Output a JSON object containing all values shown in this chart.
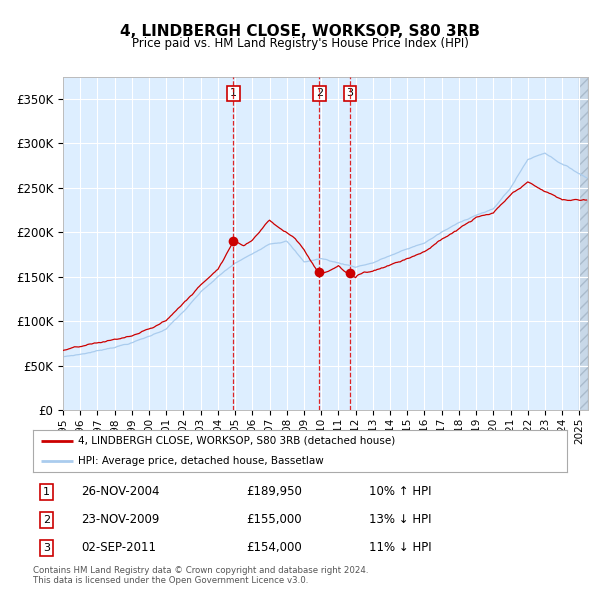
{
  "title": "4, LINDBERGH CLOSE, WORKSOP, S80 3RB",
  "subtitle": "Price paid vs. HM Land Registry's House Price Index (HPI)",
  "line1_label": "4, LINDBERGH CLOSE, WORKSOP, S80 3RB (detached house)",
  "line2_label": "HPI: Average price, detached house, Bassetlaw",
  "line1_color": "#cc0000",
  "line2_color": "#aaccee",
  "bg_color": "#ddeeff",
  "grid_color": "#ffffff",
  "transactions": [
    {
      "num": 1,
      "date": "26-NOV-2004",
      "price": 189950,
      "pct": "10%",
      "dir": "↑",
      "year_x": 2004.9
    },
    {
      "num": 2,
      "date": "23-NOV-2009",
      "price": 155000,
      "pct": "13%",
      "dir": "↓",
      "year_x": 2009.9
    },
    {
      "num": 3,
      "date": "02-SEP-2011",
      "price": 154000,
      "pct": "11%",
      "dir": "↓",
      "year_x": 2011.67
    }
  ],
  "ylim": [
    0,
    375000
  ],
  "xlim_start": 1995.0,
  "xlim_end": 2025.5,
  "yticks": [
    0,
    50000,
    100000,
    150000,
    200000,
    250000,
    300000,
    350000
  ],
  "ytick_labels": [
    "£0",
    "£50K",
    "£100K",
    "£150K",
    "£200K",
    "£250K",
    "£300K",
    "£350K"
  ],
  "xticks": [
    1995,
    1996,
    1997,
    1998,
    1999,
    2000,
    2001,
    2002,
    2003,
    2004,
    2005,
    2006,
    2007,
    2008,
    2009,
    2010,
    2011,
    2012,
    2013,
    2014,
    2015,
    2016,
    2017,
    2018,
    2019,
    2020,
    2021,
    2022,
    2023,
    2024,
    2025
  ],
  "footer": "Contains HM Land Registry data © Crown copyright and database right 2024.\nThis data is licensed under the Open Government Licence v3.0.",
  "hpi_anchors": [
    [
      1995.0,
      60000
    ],
    [
      1996.0,
      63000
    ],
    [
      1997.0,
      67000
    ],
    [
      1998.0,
      72000
    ],
    [
      1999.0,
      77000
    ],
    [
      2000.0,
      84000
    ],
    [
      2001.0,
      93000
    ],
    [
      2002.0,
      112000
    ],
    [
      2003.0,
      133000
    ],
    [
      2004.0,
      150000
    ],
    [
      2005.0,
      165000
    ],
    [
      2006.0,
      175000
    ],
    [
      2007.0,
      188000
    ],
    [
      2008.0,
      192000
    ],
    [
      2009.0,
      168000
    ],
    [
      2010.0,
      172000
    ],
    [
      2011.0,
      167000
    ],
    [
      2012.0,
      163000
    ],
    [
      2013.0,
      168000
    ],
    [
      2014.0,
      176000
    ],
    [
      2015.0,
      183000
    ],
    [
      2016.0,
      190000
    ],
    [
      2017.0,
      202000
    ],
    [
      2018.0,
      212000
    ],
    [
      2019.0,
      222000
    ],
    [
      2020.0,
      228000
    ],
    [
      2021.0,
      252000
    ],
    [
      2022.0,
      284000
    ],
    [
      2023.0,
      292000
    ],
    [
      2024.0,
      280000
    ],
    [
      2025.4,
      265000
    ]
  ],
  "pp_anchors": [
    [
      1995.0,
      67000
    ],
    [
      1996.0,
      70000
    ],
    [
      1997.0,
      73000
    ],
    [
      1998.0,
      77000
    ],
    [
      1999.0,
      81000
    ],
    [
      2000.0,
      88000
    ],
    [
      2001.0,
      98000
    ],
    [
      2002.0,
      118000
    ],
    [
      2003.0,
      138000
    ],
    [
      2004.0,
      158000
    ],
    [
      2004.9,
      190000
    ],
    [
      2005.5,
      185000
    ],
    [
      2006.0,
      192000
    ],
    [
      2007.0,
      216000
    ],
    [
      2007.5,
      208000
    ],
    [
      2008.5,
      195000
    ],
    [
      2009.0,
      183000
    ],
    [
      2009.9,
      155000
    ],
    [
      2010.5,
      160000
    ],
    [
      2011.0,
      165000
    ],
    [
      2011.67,
      154000
    ],
    [
      2012.0,
      152000
    ],
    [
      2012.5,
      158000
    ],
    [
      2013.0,
      160000
    ],
    [
      2014.0,
      168000
    ],
    [
      2015.0,
      176000
    ],
    [
      2016.0,
      185000
    ],
    [
      2017.0,
      198000
    ],
    [
      2018.0,
      210000
    ],
    [
      2019.0,
      222000
    ],
    [
      2020.0,
      226000
    ],
    [
      2021.0,
      245000
    ],
    [
      2022.0,
      258000
    ],
    [
      2023.0,
      248000
    ],
    [
      2024.0,
      238000
    ],
    [
      2025.4,
      238000
    ]
  ]
}
